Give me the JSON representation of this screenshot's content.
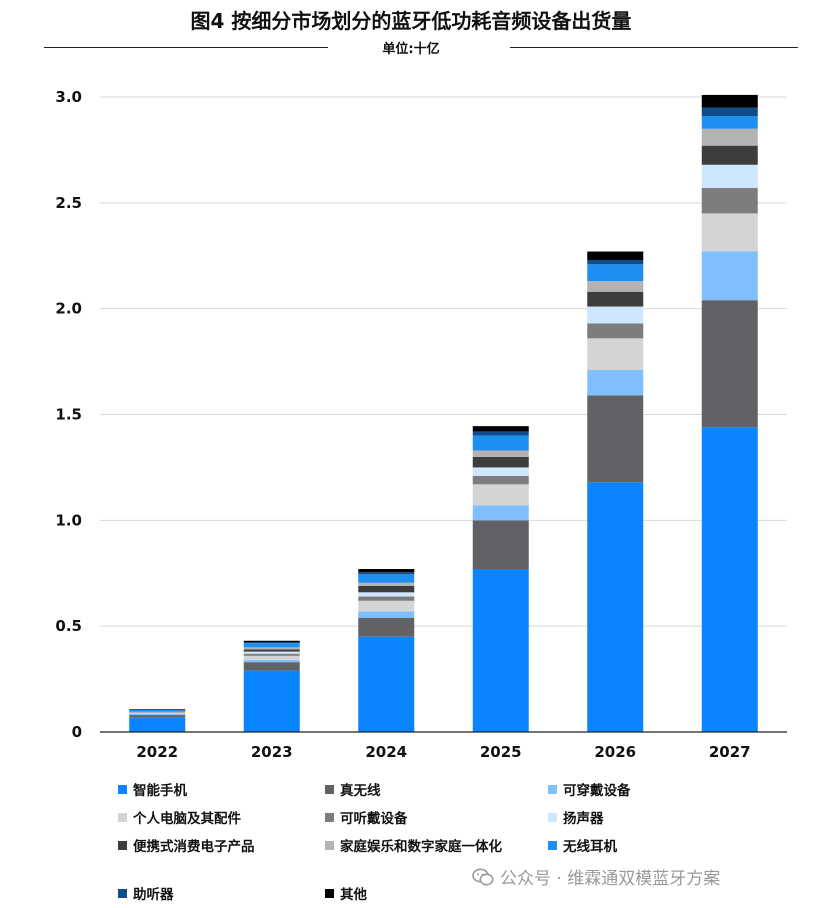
{
  "title": "图4 按细分市场划分的蓝牙低功耗音频设备出货量",
  "unit": "单位:十亿",
  "watermark": "公众号 · 维霖通双模蓝牙方案",
  "watermark_icon": "wechat-icon",
  "chart_data": {
    "type": "bar",
    "stacked": true,
    "categories": [
      "2022",
      "2023",
      "2024",
      "2025",
      "2026",
      "2027"
    ],
    "ylim": [
      0,
      3.0
    ],
    "yticks": [
      "0",
      "0.5",
      "1.0",
      "1.5",
      "2.0",
      "2.5",
      "3.0"
    ],
    "ytick_values": [
      0,
      0.5,
      1.0,
      1.5,
      2.0,
      2.5,
      3.0
    ],
    "grid": true,
    "legend_position": "bottom",
    "series": [
      {
        "name": "智能手机",
        "color": "#0a84ff",
        "values": [
          0.07,
          0.29,
          0.45,
          0.77,
          1.18,
          1.44
        ]
      },
      {
        "name": "真无线",
        "color": "#606266",
        "values": [
          0.01,
          0.04,
          0.09,
          0.23,
          0.41,
          0.6
        ]
      },
      {
        "name": "可穿戴设备",
        "color": "#7fbfff",
        "values": [
          0.005,
          0.01,
          0.03,
          0.07,
          0.12,
          0.23
        ]
      },
      {
        "name": "个人电脑及其配件",
        "color": "#d4d4d4",
        "values": [
          0.005,
          0.02,
          0.05,
          0.1,
          0.15,
          0.18
        ]
      },
      {
        "name": "可听戴设备",
        "color": "#7d7d7d",
        "values": [
          0.003,
          0.01,
          0.02,
          0.04,
          0.07,
          0.12
        ]
      },
      {
        "name": "扬声器",
        "color": "#cfe6ff",
        "values": [
          0.002,
          0.01,
          0.02,
          0.04,
          0.08,
          0.11
        ]
      },
      {
        "name": "便携式消费电子产品",
        "color": "#3d3d3d",
        "values": [
          0.002,
          0.01,
          0.03,
          0.05,
          0.07,
          0.09
        ]
      },
      {
        "name": "家庭娱乐和数字家庭一体化",
        "color": "#b3b3b3",
        "values": [
          0.002,
          0.01,
          0.015,
          0.03,
          0.05,
          0.08
        ]
      },
      {
        "name": "无线耳机",
        "color": "#1f8ef1",
        "values": [
          0.005,
          0.02,
          0.04,
          0.07,
          0.08,
          0.06
        ]
      },
      {
        "name": "助听器",
        "color": "#0f4c8a",
        "values": [
          0.002,
          0.005,
          0.01,
          0.02,
          0.02,
          0.04
        ]
      },
      {
        "name": "其他",
        "color": "#000000",
        "values": [
          0.002,
          0.006,
          0.015,
          0.025,
          0.04,
          0.06
        ]
      }
    ]
  }
}
